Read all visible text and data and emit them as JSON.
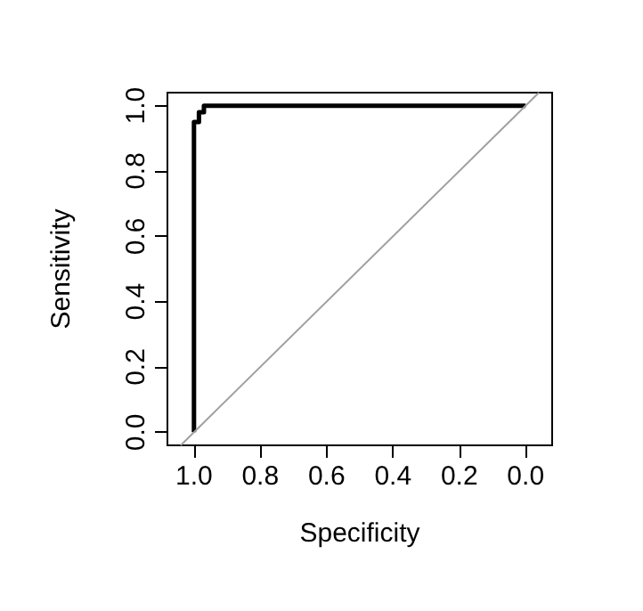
{
  "chart_data": {
    "type": "line",
    "xlabel": "Specificity",
    "ylabel": "Sensitivity",
    "xlim": [
      1.08,
      -0.08
    ],
    "ylim": [
      -0.04,
      1.04
    ],
    "xticks": [
      {
        "value": 1,
        "label": "1.0"
      },
      0.8,
      0.6,
      0.4,
      0.2,
      {
        "value": 0,
        "label": "0.0"
      }
    ],
    "yticks": [
      {
        "value": 0,
        "label": "0.0"
      },
      0.2,
      0.4,
      0.6,
      0.8,
      {
        "value": 1,
        "label": "1.0"
      }
    ],
    "grid": false,
    "marker": "none",
    "line_style": "solid",
    "series": [
      {
        "color": "#000000",
        "x": [
          1.0,
          1.0,
          0.985,
          0.985,
          0.97,
          0.97,
          0.0
        ],
        "values": [
          0.0,
          0.95,
          0.95,
          0.98,
          0.98,
          1.0,
          1.0
        ]
      },
      {
        "color": "#a0a0a0",
        "x": [
          1.04,
          -0.04
        ],
        "values": [
          -0.04,
          1.04
        ]
      }
    ]
  }
}
